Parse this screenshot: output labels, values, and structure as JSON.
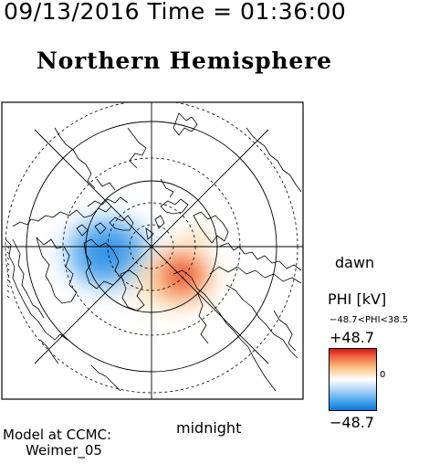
{
  "header": {
    "timestamp": "09/13/2016 Time = 01:36:00",
    "hemisphere": "Northern Hemisphere"
  },
  "map": {
    "labels": {
      "dawn": "dawn",
      "midnight": "midnight"
    },
    "potential": {
      "negative_cell_color": "#1e88e5",
      "positive_cell_color": "#e53935",
      "positive_secondary_color": "#ffcc80"
    }
  },
  "colorbar": {
    "title": "PHI [kV]",
    "range_text": "−48.7<PHI<38.5",
    "max_label": "+48.7",
    "min_label": "−48.7",
    "zero_label": "0",
    "colors": {
      "top": "#d81818",
      "middle": "#ffffff",
      "bottom": "#0a78e0"
    }
  },
  "footer": {
    "model_line": "Model at CCMC:",
    "model_name": "Weimer_05"
  }
}
